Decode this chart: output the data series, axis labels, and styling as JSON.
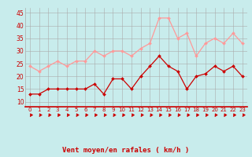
{
  "x": [
    0,
    1,
    2,
    3,
    4,
    5,
    6,
    7,
    8,
    9,
    10,
    11,
    12,
    13,
    14,
    15,
    16,
    17,
    18,
    19,
    20,
    21,
    22,
    23
  ],
  "vent_moyen": [
    13,
    13,
    15,
    15,
    15,
    15,
    15,
    17,
    13,
    19,
    19,
    15,
    20,
    24,
    28,
    24,
    22,
    15,
    20,
    21,
    24,
    22,
    24,
    20
  ],
  "rafales": [
    24,
    22,
    24,
    26,
    24,
    26,
    26,
    30,
    28,
    30,
    30,
    28,
    31,
    33,
    43,
    43,
    35,
    37,
    28,
    33,
    35,
    33,
    37,
    33
  ],
  "line_dark": "#cc0000",
  "line_light": "#ff9999",
  "bg_color": "#c8ecec",
  "grid_color": "#aaaaaa",
  "xlabel": "Vent moyen/en rafales ( km/h )",
  "xlabel_color": "#cc0000",
  "tick_color": "#cc0000",
  "ylim_min": 8,
  "ylim_max": 47,
  "yticks": [
    10,
    15,
    20,
    25,
    30,
    35,
    40,
    45
  ],
  "xticks": [
    0,
    1,
    2,
    3,
    4,
    5,
    6,
    7,
    8,
    9,
    10,
    11,
    12,
    13,
    14,
    15,
    16,
    17,
    18,
    19,
    20,
    21,
    22,
    23
  ]
}
